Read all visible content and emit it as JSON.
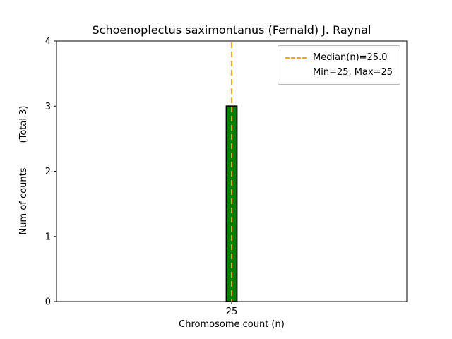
{
  "chart_data": {
    "type": "bar",
    "title": "Schoenoplectus saximontanus (Fernald) J. Raynal",
    "xlabel": "Chromosome count (n)",
    "ylabel": "Num of counts",
    "ylabel_total": "(Total 3)",
    "categories": [
      25
    ],
    "values": [
      3
    ],
    "xtick_labels": [
      "25"
    ],
    "yticks": [
      0,
      1,
      2,
      3,
      4
    ],
    "ylim": [
      0,
      4
    ],
    "grid": false,
    "bar_color": "#008000",
    "bar_edge_color": "#000000",
    "median_line": {
      "value": 25.0,
      "color": "#FFA500",
      "style": "dashed"
    },
    "legend": {
      "position": "upper-right",
      "entries": [
        {
          "label": "Median(n)=25.0",
          "sample": "dashed-orange-line"
        },
        {
          "label": "Min=25, Max=25",
          "sample": "none"
        }
      ]
    }
  }
}
